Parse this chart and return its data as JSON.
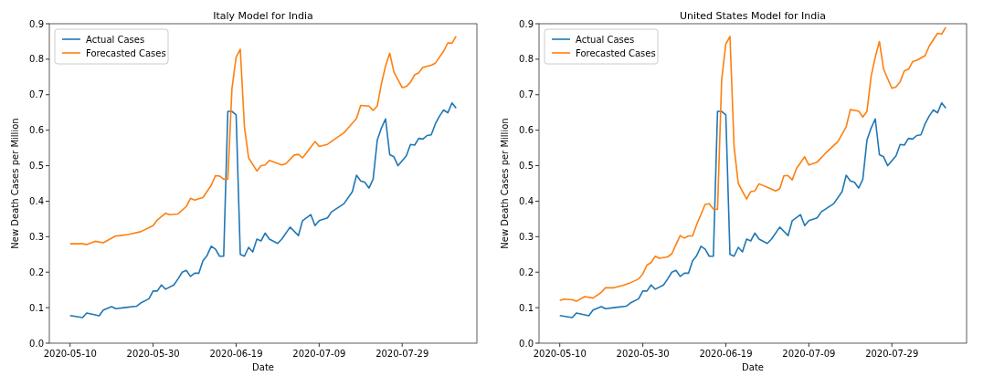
{
  "chart_data": [
    {
      "type": "line",
      "title": "Italy Model for India",
      "xlabel": "Date",
      "ylabel": "New Death Cases per Million",
      "legend": "top left",
      "grid": false,
      "xlim": [
        "2020-05-05",
        "2020-08-16"
      ],
      "xticks": [
        "2020-05-10",
        "2020-05-30",
        "2020-06-19",
        "2020-07-09",
        "2020-07-29"
      ],
      "ylim": [
        0,
        0.9
      ],
      "yticks": [
        {
          "value": 0,
          "label": "0.0"
        },
        0.1,
        0.2,
        0.3,
        0.4,
        0.5,
        0.6,
        0.7,
        0.8,
        0.9
      ],
      "series": [
        {
          "name": "Actual Cases",
          "color": "#1f77b4",
          "x": [
            "2020-05-10",
            "2020-05-13",
            "2020-05-14",
            "2020-05-17",
            "2020-05-18",
            "2020-05-20",
            "2020-05-21",
            "2020-05-23",
            "2020-05-26",
            "2020-05-27",
            "2020-05-29",
            "2020-05-30",
            "2020-05-31",
            "2020-06-01",
            "2020-06-02",
            "2020-06-04",
            "2020-06-05",
            "2020-06-06",
            "2020-06-07",
            "2020-06-08",
            "2020-06-09",
            "2020-06-10",
            "2020-06-11",
            "2020-06-12",
            "2020-06-13",
            "2020-06-14",
            "2020-06-15",
            "2020-06-16",
            "2020-06-17",
            "2020-06-18",
            "2020-06-19",
            "2020-06-20",
            "2020-06-21",
            "2020-06-22",
            "2020-06-23",
            "2020-06-24",
            "2020-06-25",
            "2020-06-26",
            "2020-06-27",
            "2020-06-29",
            "2020-06-30",
            "2020-07-02",
            "2020-07-04",
            "2020-07-05",
            "2020-07-07",
            "2020-07-08",
            "2020-07-09",
            "2020-07-11",
            "2020-07-12",
            "2020-07-15",
            "2020-07-17",
            "2020-07-18",
            "2020-07-19",
            "2020-07-20",
            "2020-07-21",
            "2020-07-22",
            "2020-07-23",
            "2020-07-24",
            "2020-07-25",
            "2020-07-26",
            "2020-07-27",
            "2020-07-28",
            "2020-07-30",
            "2020-07-31",
            "2020-08-01",
            "2020-08-02",
            "2020-08-03",
            "2020-08-04",
            "2020-08-05",
            "2020-08-06",
            "2020-08-07",
            "2020-08-08",
            "2020-08-09",
            "2020-08-10",
            "2020-08-11"
          ],
          "values": [
            0.078,
            0.072,
            0.085,
            0.077,
            0.093,
            0.103,
            0.097,
            0.1,
            0.104,
            0.113,
            0.125,
            0.147,
            0.147,
            0.164,
            0.152,
            0.164,
            0.181,
            0.2,
            0.205,
            0.188,
            0.197,
            0.197,
            0.232,
            0.247,
            0.273,
            0.265,
            0.245,
            0.245,
            0.653,
            0.653,
            0.643,
            0.25,
            0.245,
            0.27,
            0.257,
            0.293,
            0.288,
            0.31,
            0.293,
            0.281,
            0.293,
            0.327,
            0.303,
            0.345,
            0.362,
            0.331,
            0.345,
            0.353,
            0.37,
            0.393,
            0.427,
            0.473,
            0.457,
            0.453,
            0.437,
            0.462,
            0.572,
            0.606,
            0.632,
            0.531,
            0.525,
            0.5,
            0.528,
            0.56,
            0.558,
            0.577,
            0.575,
            0.585,
            0.587,
            0.618,
            0.64,
            0.657,
            0.649,
            0.677,
            0.662
          ]
        },
        {
          "name": "Forecasted Cases",
          "color": "#ff7f0e",
          "x": [
            "2020-05-10",
            "2020-05-13",
            "2020-05-14",
            "2020-05-16",
            "2020-05-18",
            "2020-05-21",
            "2020-05-22",
            "2020-05-24",
            "2020-05-27",
            "2020-05-30",
            "2020-05-31",
            "2020-06-02",
            "2020-06-03",
            "2020-06-05",
            "2020-06-07",
            "2020-06-08",
            "2020-06-09",
            "2020-06-10",
            "2020-06-11",
            "2020-06-13",
            "2020-06-14",
            "2020-06-15",
            "2020-06-16",
            "2020-06-17",
            "2020-06-18",
            "2020-06-19",
            "2020-06-20",
            "2020-06-21",
            "2020-06-22",
            "2020-06-24",
            "2020-06-25",
            "2020-06-26",
            "2020-06-27",
            "2020-06-30",
            "2020-07-01",
            "2020-07-03",
            "2020-07-04",
            "2020-07-05",
            "2020-07-07",
            "2020-07-08",
            "2020-07-09",
            "2020-07-11",
            "2020-07-13",
            "2020-07-15",
            "2020-07-16",
            "2020-07-18",
            "2020-07-19",
            "2020-07-21",
            "2020-07-22",
            "2020-07-23",
            "2020-07-24",
            "2020-07-25",
            "2020-07-26",
            "2020-07-27",
            "2020-07-28",
            "2020-07-29",
            "2020-07-30",
            "2020-07-31",
            "2020-08-01",
            "2020-08-02",
            "2020-08-03",
            "2020-08-05",
            "2020-08-06",
            "2020-08-08",
            "2020-08-09",
            "2020-08-10",
            "2020-08-11"
          ],
          "values": [
            0.28,
            0.28,
            0.278,
            0.287,
            0.283,
            0.302,
            0.303,
            0.306,
            0.314,
            0.331,
            0.347,
            0.366,
            0.362,
            0.364,
            0.385,
            0.408,
            0.403,
            0.407,
            0.41,
            0.445,
            0.472,
            0.471,
            0.462,
            0.462,
            0.718,
            0.806,
            0.828,
            0.61,
            0.522,
            0.485,
            0.5,
            0.502,
            0.515,
            0.502,
            0.506,
            0.53,
            0.532,
            0.522,
            0.552,
            0.568,
            0.554,
            0.56,
            0.577,
            0.593,
            0.606,
            0.633,
            0.67,
            0.668,
            0.656,
            0.668,
            0.731,
            0.781,
            0.817,
            0.764,
            0.742,
            0.72,
            0.723,
            0.735,
            0.756,
            0.762,
            0.777,
            0.783,
            0.789,
            0.823,
            0.846,
            0.845,
            0.865
          ]
        }
      ]
    },
    {
      "type": "line",
      "title": "United States Model for India",
      "xlabel": "Date",
      "ylabel": "New Death Cases per Million",
      "legend": "top left",
      "grid": false,
      "xlim": [
        "2020-05-05",
        "2020-08-16"
      ],
      "xticks": [
        "2020-05-10",
        "2020-05-30",
        "2020-06-19",
        "2020-07-09",
        "2020-07-29"
      ],
      "ylim": [
        0,
        0.9
      ],
      "yticks": [
        {
          "value": 0,
          "label": "0.0"
        },
        0.1,
        0.2,
        0.3,
        0.4,
        0.5,
        0.6,
        0.7,
        0.8,
        0.9
      ],
      "series": [
        {
          "name": "Actual Cases",
          "color": "#1f77b4",
          "x": [
            "2020-05-10",
            "2020-05-13",
            "2020-05-14",
            "2020-05-17",
            "2020-05-18",
            "2020-05-20",
            "2020-05-21",
            "2020-05-23",
            "2020-05-26",
            "2020-05-27",
            "2020-05-29",
            "2020-05-30",
            "2020-05-31",
            "2020-06-01",
            "2020-06-02",
            "2020-06-04",
            "2020-06-05",
            "2020-06-06",
            "2020-06-07",
            "2020-06-08",
            "2020-06-09",
            "2020-06-10",
            "2020-06-11",
            "2020-06-12",
            "2020-06-13",
            "2020-06-14",
            "2020-06-15",
            "2020-06-16",
            "2020-06-17",
            "2020-06-18",
            "2020-06-19",
            "2020-06-20",
            "2020-06-21",
            "2020-06-22",
            "2020-06-23",
            "2020-06-24",
            "2020-06-25",
            "2020-06-26",
            "2020-06-27",
            "2020-06-29",
            "2020-06-30",
            "2020-07-02",
            "2020-07-04",
            "2020-07-05",
            "2020-07-07",
            "2020-07-08",
            "2020-07-09",
            "2020-07-11",
            "2020-07-12",
            "2020-07-15",
            "2020-07-17",
            "2020-07-18",
            "2020-07-19",
            "2020-07-20",
            "2020-07-21",
            "2020-07-22",
            "2020-07-23",
            "2020-07-24",
            "2020-07-25",
            "2020-07-26",
            "2020-07-27",
            "2020-07-28",
            "2020-07-30",
            "2020-07-31",
            "2020-08-01",
            "2020-08-02",
            "2020-08-03",
            "2020-08-04",
            "2020-08-05",
            "2020-08-06",
            "2020-08-07",
            "2020-08-08",
            "2020-08-09",
            "2020-08-10",
            "2020-08-11"
          ],
          "values": [
            0.078,
            0.072,
            0.085,
            0.077,
            0.093,
            0.103,
            0.097,
            0.1,
            0.104,
            0.113,
            0.125,
            0.147,
            0.147,
            0.164,
            0.152,
            0.164,
            0.181,
            0.2,
            0.205,
            0.188,
            0.197,
            0.197,
            0.232,
            0.247,
            0.273,
            0.265,
            0.245,
            0.245,
            0.653,
            0.653,
            0.643,
            0.25,
            0.245,
            0.27,
            0.257,
            0.293,
            0.288,
            0.31,
            0.293,
            0.281,
            0.293,
            0.327,
            0.303,
            0.345,
            0.362,
            0.331,
            0.345,
            0.353,
            0.37,
            0.393,
            0.427,
            0.473,
            0.457,
            0.453,
            0.437,
            0.462,
            0.572,
            0.606,
            0.632,
            0.531,
            0.525,
            0.5,
            0.528,
            0.56,
            0.558,
            0.577,
            0.575,
            0.585,
            0.587,
            0.618,
            0.64,
            0.657,
            0.649,
            0.677,
            0.662
          ]
        },
        {
          "name": "Forecasted Cases",
          "color": "#ff7f0e",
          "x": [
            "2020-05-10",
            "2020-05-11",
            "2020-05-13",
            "2020-05-14",
            "2020-05-16",
            "2020-05-18",
            "2020-05-20",
            "2020-05-21",
            "2020-05-23",
            "2020-05-25",
            "2020-05-27",
            "2020-05-29",
            "2020-05-30",
            "2020-05-31",
            "2020-06-01",
            "2020-06-02",
            "2020-06-03",
            "2020-06-05",
            "2020-06-06",
            "2020-06-07",
            "2020-06-08",
            "2020-06-09",
            "2020-06-10",
            "2020-06-11",
            "2020-06-12",
            "2020-06-13",
            "2020-06-14",
            "2020-06-15",
            "2020-06-16",
            "2020-06-17",
            "2020-06-18",
            "2020-06-19",
            "2020-06-20",
            "2020-06-21",
            "2020-06-22",
            "2020-06-24",
            "2020-06-25",
            "2020-06-26",
            "2020-06-27",
            "2020-06-29",
            "2020-07-01",
            "2020-07-02",
            "2020-07-03",
            "2020-07-04",
            "2020-07-05",
            "2020-07-06",
            "2020-07-08",
            "2020-07-09",
            "2020-07-11",
            "2020-07-13",
            "2020-07-16",
            "2020-07-18",
            "2020-07-19",
            "2020-07-21",
            "2020-07-22",
            "2020-07-23",
            "2020-07-24",
            "2020-07-25",
            "2020-07-26",
            "2020-07-27",
            "2020-07-29",
            "2020-07-30",
            "2020-07-31",
            "2020-08-01",
            "2020-08-02",
            "2020-08-03",
            "2020-08-04",
            "2020-08-06",
            "2020-08-07",
            "2020-08-09",
            "2020-08-10",
            "2020-08-11"
          ],
          "values": [
            0.12,
            0.124,
            0.122,
            0.118,
            0.131,
            0.127,
            0.143,
            0.156,
            0.156,
            0.162,
            0.17,
            0.181,
            0.195,
            0.22,
            0.227,
            0.245,
            0.239,
            0.243,
            0.252,
            0.278,
            0.303,
            0.296,
            0.302,
            0.302,
            0.335,
            0.362,
            0.391,
            0.393,
            0.378,
            0.377,
            0.743,
            0.843,
            0.864,
            0.552,
            0.45,
            0.406,
            0.427,
            0.429,
            0.449,
            0.439,
            0.429,
            0.435,
            0.472,
            0.472,
            0.46,
            0.492,
            0.525,
            0.502,
            0.51,
            0.535,
            0.568,
            0.61,
            0.658,
            0.654,
            0.637,
            0.653,
            0.752,
            0.806,
            0.85,
            0.772,
            0.718,
            0.722,
            0.737,
            0.767,
            0.772,
            0.793,
            0.797,
            0.81,
            0.837,
            0.873,
            0.871,
            0.89
          ]
        }
      ]
    }
  ]
}
